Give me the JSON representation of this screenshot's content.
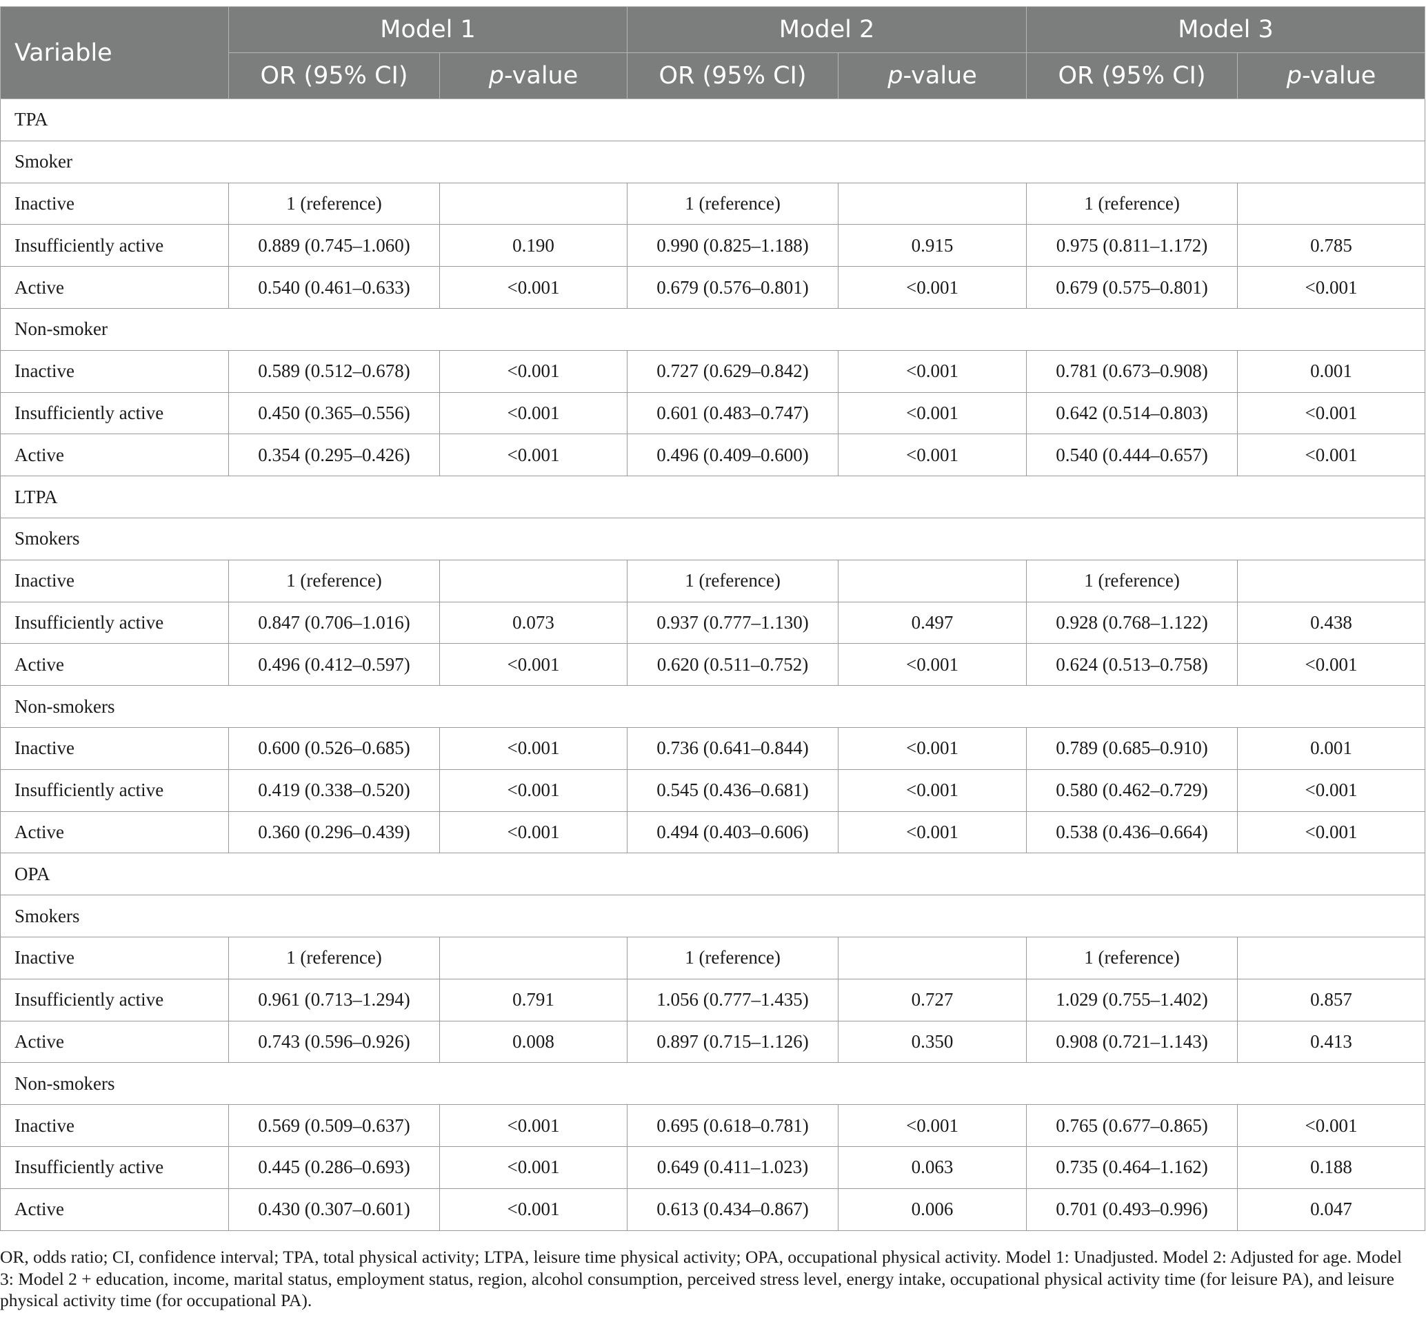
{
  "header": {
    "variable": "Variable",
    "models": [
      "Model 1",
      "Model 2",
      "Model 3"
    ],
    "or_label": "OR (95% CI)",
    "p_label_italic": "p",
    "p_label_rest": "-value"
  },
  "rows": [
    {
      "type": "section",
      "label": "TPA"
    },
    {
      "type": "section",
      "label": "Smoker"
    },
    {
      "type": "data",
      "label": "Inactive",
      "m1_or": "1 (reference)",
      "m1_p": "",
      "m2_or": "1 (reference)",
      "m2_p": "",
      "m3_or": "1 (reference)",
      "m3_p": ""
    },
    {
      "type": "data",
      "label": "Insufficiently active",
      "m1_or": "0.889 (0.745–1.060)",
      "m1_p": "0.190",
      "m2_or": "0.990 (0.825–1.188)",
      "m2_p": "0.915",
      "m3_or": "0.975 (0.811–1.172)",
      "m3_p": "0.785"
    },
    {
      "type": "data",
      "label": "Active",
      "m1_or": "0.540 (0.461–0.633)",
      "m1_p": "<0.001",
      "m2_or": "0.679 (0.576–0.801)",
      "m2_p": "<0.001",
      "m3_or": "0.679 (0.575–0.801)",
      "m3_p": "<0.001"
    },
    {
      "type": "section",
      "label": "Non-smoker"
    },
    {
      "type": "data",
      "label": "Inactive",
      "m1_or": "0.589 (0.512–0.678)",
      "m1_p": "<0.001",
      "m2_or": "0.727 (0.629–0.842)",
      "m2_p": "<0.001",
      "m3_or": "0.781 (0.673–0.908)",
      "m3_p": "0.001"
    },
    {
      "type": "data",
      "label": "Insufficiently active",
      "m1_or": "0.450 (0.365–0.556)",
      "m1_p": "<0.001",
      "m2_or": "0.601 (0.483–0.747)",
      "m2_p": "<0.001",
      "m3_or": "0.642 (0.514–0.803)",
      "m3_p": "<0.001"
    },
    {
      "type": "data",
      "label": "Active",
      "m1_or": "0.354 (0.295–0.426)",
      "m1_p": "<0.001",
      "m2_or": "0.496 (0.409–0.600)",
      "m2_p": "<0.001",
      "m3_or": "0.540 (0.444–0.657)",
      "m3_p": "<0.001"
    },
    {
      "type": "section",
      "label": "LTPA"
    },
    {
      "type": "section",
      "label": "Smokers"
    },
    {
      "type": "data",
      "label": "Inactive",
      "m1_or": "1 (reference)",
      "m1_p": "",
      "m2_or": "1 (reference)",
      "m2_p": "",
      "m3_or": "1 (reference)",
      "m3_p": ""
    },
    {
      "type": "data",
      "label": "Insufficiently active",
      "m1_or": "0.847 (0.706–1.016)",
      "m1_p": "0.073",
      "m2_or": "0.937 (0.777–1.130)",
      "m2_p": "0.497",
      "m3_or": "0.928 (0.768–1.122)",
      "m3_p": "0.438"
    },
    {
      "type": "data",
      "label": "Active",
      "m1_or": "0.496 (0.412–0.597)",
      "m1_p": "<0.001",
      "m2_or": "0.620 (0.511–0.752)",
      "m2_p": "<0.001",
      "m3_or": "0.624 (0.513–0.758)",
      "m3_p": "<0.001"
    },
    {
      "type": "section",
      "label": "Non-smokers"
    },
    {
      "type": "data",
      "label": "Inactive",
      "m1_or": "0.600 (0.526–0.685)",
      "m1_p": "<0.001",
      "m2_or": "0.736 (0.641–0.844)",
      "m2_p": "<0.001",
      "m3_or": "0.789 (0.685–0.910)",
      "m3_p": "0.001"
    },
    {
      "type": "data",
      "label": "Insufficiently active",
      "m1_or": "0.419 (0.338–0.520)",
      "m1_p": "<0.001",
      "m2_or": "0.545 (0.436–0.681)",
      "m2_p": "<0.001",
      "m3_or": "0.580 (0.462–0.729)",
      "m3_p": "<0.001"
    },
    {
      "type": "data",
      "label": "Active",
      "m1_or": "0.360 (0.296–0.439)",
      "m1_p": "<0.001",
      "m2_or": "0.494 (0.403–0.606)",
      "m2_p": "<0.001",
      "m3_or": "0.538 (0.436–0.664)",
      "m3_p": "<0.001"
    },
    {
      "type": "section",
      "label": "OPA"
    },
    {
      "type": "section",
      "label": "Smokers"
    },
    {
      "type": "data",
      "label": "Inactive",
      "m1_or": "1 (reference)",
      "m1_p": "",
      "m2_or": "1 (reference)",
      "m2_p": "",
      "m3_or": "1 (reference)",
      "m3_p": ""
    },
    {
      "type": "data",
      "label": "Insufficiently active",
      "m1_or": "0.961 (0.713–1.294)",
      "m1_p": "0.791",
      "m2_or": "1.056 (0.777–1.435)",
      "m2_p": "0.727",
      "m3_or": "1.029 (0.755–1.402)",
      "m3_p": "0.857"
    },
    {
      "type": "data",
      "label": "Active",
      "m1_or": "0.743 (0.596–0.926)",
      "m1_p": "0.008",
      "m2_or": "0.897 (0.715–1.126)",
      "m2_p": "0.350",
      "m3_or": "0.908 (0.721–1.143)",
      "m3_p": "0.413"
    },
    {
      "type": "section",
      "label": "Non-smokers"
    },
    {
      "type": "data",
      "label": "Inactive",
      "m1_or": "0.569 (0.509–0.637)",
      "m1_p": "<0.001",
      "m2_or": "0.695 (0.618–0.781)",
      "m2_p": "<0.001",
      "m3_or": "0.765 (0.677–0.865)",
      "m3_p": "<0.001"
    },
    {
      "type": "data",
      "label": "Insufficiently active",
      "m1_or": "0.445 (0.286–0.693)",
      "m1_p": "<0.001",
      "m2_or": "0.649 (0.411–1.023)",
      "m2_p": "0.063",
      "m3_or": "0.735 (0.464–1.162)",
      "m3_p": "0.188"
    },
    {
      "type": "data",
      "label": "Active",
      "m1_or": "0.430 (0.307–0.601)",
      "m1_p": "<0.001",
      "m2_or": "0.613 (0.434–0.867)",
      "m2_p": "0.006",
      "m3_or": "0.701 (0.493–0.996)",
      "m3_p": "0.047"
    }
  ],
  "footnote": "OR, odds ratio; CI, confidence interval; TPA, total physical activity; LTPA, leisure time physical activity; OPA, occupational physical activity. Model 1: Unadjusted. Model 2: Adjusted for age. Model 3: Model 2 + education, income, marital status, employment status, region, alcohol consumption, perceived stress level, energy intake, occupational physical activity time (for leisure PA), and leisure physical activity time (for occupational PA).",
  "colors": {
    "header_bg": "#7c7e7e",
    "header_text": "#ffffff",
    "body_text": "#1a1a1a",
    "rule": "#9a9a9a"
  }
}
